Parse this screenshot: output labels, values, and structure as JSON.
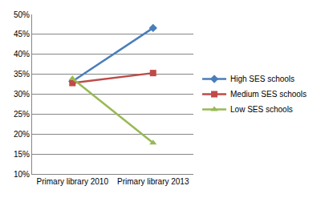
{
  "chart_data": {
    "type": "line",
    "categories": [
      "Primary library 2010",
      "Primary library 2013"
    ],
    "series": [
      {
        "name": "High SES schools",
        "color": "#4a7ebb",
        "marker": "diamond",
        "values": [
          33.2,
          46.6
        ]
      },
      {
        "name": "Medium SES schools",
        "color": "#be4b48",
        "marker": "square",
        "values": [
          32.8,
          35.3
        ]
      },
      {
        "name": "Low SES schools",
        "color": "#98b954",
        "marker": "triangle",
        "values": [
          33.9,
          17.8
        ]
      }
    ],
    "ylim": [
      10,
      50
    ],
    "yticks": [
      {
        "value": 10,
        "label": "10%"
      },
      {
        "value": 15,
        "label": "15%"
      },
      {
        "value": 20,
        "label": "20%"
      },
      {
        "value": 25,
        "label": "25%"
      },
      {
        "value": 30,
        "label": "30%"
      },
      {
        "value": 35,
        "label": "35%"
      },
      {
        "value": 40,
        "label": "40%"
      },
      {
        "value": 45,
        "label": "45%"
      },
      {
        "value": 50,
        "label": "50%"
      }
    ],
    "grid": true,
    "legend": "right"
  }
}
